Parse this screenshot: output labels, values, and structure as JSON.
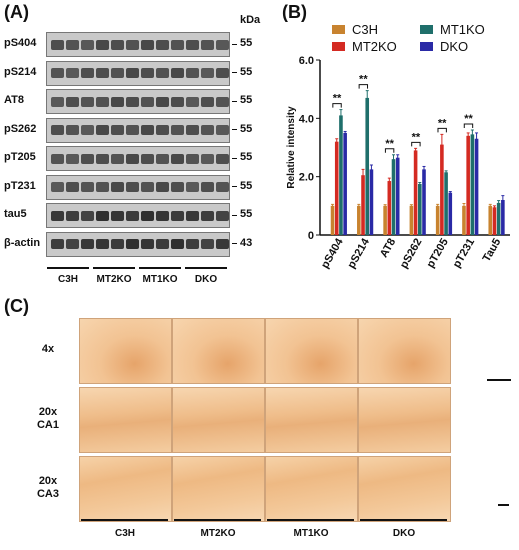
{
  "panels": {
    "a": "(A)",
    "b": "(B)",
    "c": "(C)"
  },
  "blot": {
    "kda_label": "kDa",
    "rows": [
      {
        "label": "pS404",
        "mw": "55"
      },
      {
        "label": "pS214",
        "mw": "55"
      },
      {
        "label": "AT8",
        "mw": "55"
      },
      {
        "label": "pS262",
        "mw": "55"
      },
      {
        "label": "pT205",
        "mw": "55"
      },
      {
        "label": "pT231",
        "mw": "55"
      },
      {
        "label": "tau5",
        "mw": "55"
      },
      {
        "label": "β-actin",
        "mw": "43"
      }
    ],
    "groups": [
      "C3H",
      "MT2KO",
      "MT1KO",
      "DKO"
    ]
  },
  "histology": {
    "rows": [
      "4x",
      "20x\nCA1",
      "20x\nCA3"
    ],
    "groups": [
      "C3H",
      "MT2KO",
      "MT1KO",
      "DKO"
    ]
  },
  "colors": {
    "C3H": "#c8832f",
    "MT2KO": "#d42a22",
    "MT1KO": "#1f6f6b",
    "DKO": "#2a2aa6"
  },
  "chart_data": {
    "type": "bar",
    "categories": [
      "pS404",
      "pS214",
      "AT8",
      "pS262",
      "pT205",
      "pT231",
      "Tau5"
    ],
    "series": [
      {
        "name": "C3H",
        "values": [
          1.0,
          1.0,
          1.0,
          1.0,
          1.0,
          1.0,
          1.0
        ],
        "errors": [
          0.05,
          0.05,
          0.04,
          0.04,
          0.05,
          0.08,
          0.05
        ]
      },
      {
        "name": "MT2KO",
        "values": [
          3.2,
          2.05,
          1.85,
          2.9,
          3.1,
          3.4,
          0.95
        ],
        "errors": [
          0.1,
          0.2,
          0.1,
          0.07,
          0.35,
          0.1,
          0.05
        ]
      },
      {
        "name": "MT1KO",
        "values": [
          4.1,
          4.7,
          2.6,
          1.75,
          2.15,
          3.45,
          1.1
        ],
        "errors": [
          0.2,
          0.25,
          0.15,
          0.05,
          0.05,
          0.15,
          0.08
        ]
      },
      {
        "name": "DKO",
        "values": [
          3.5,
          2.25,
          2.65,
          2.25,
          1.45,
          3.3,
          1.2
        ],
        "errors": [
          0.05,
          0.15,
          0.1,
          0.1,
          0.04,
          0.2,
          0.15
        ]
      }
    ],
    "significance": [
      {
        "category": "pS404",
        "label": "**"
      },
      {
        "category": "pS214",
        "label": "**"
      },
      {
        "category": "AT8",
        "label": "**"
      },
      {
        "category": "pS262",
        "label": "**"
      },
      {
        "category": "pT205",
        "label": "**"
      },
      {
        "category": "pT231",
        "label": "**"
      }
    ],
    "ylabel": "Relative intensity",
    "ylim": [
      0,
      6
    ],
    "yticks": [
      0,
      2.0,
      4.0,
      6.0
    ],
    "ytick_labels": [
      "0",
      "2.0",
      "4.0",
      "6.0"
    ],
    "legend": "top",
    "grid": false
  }
}
